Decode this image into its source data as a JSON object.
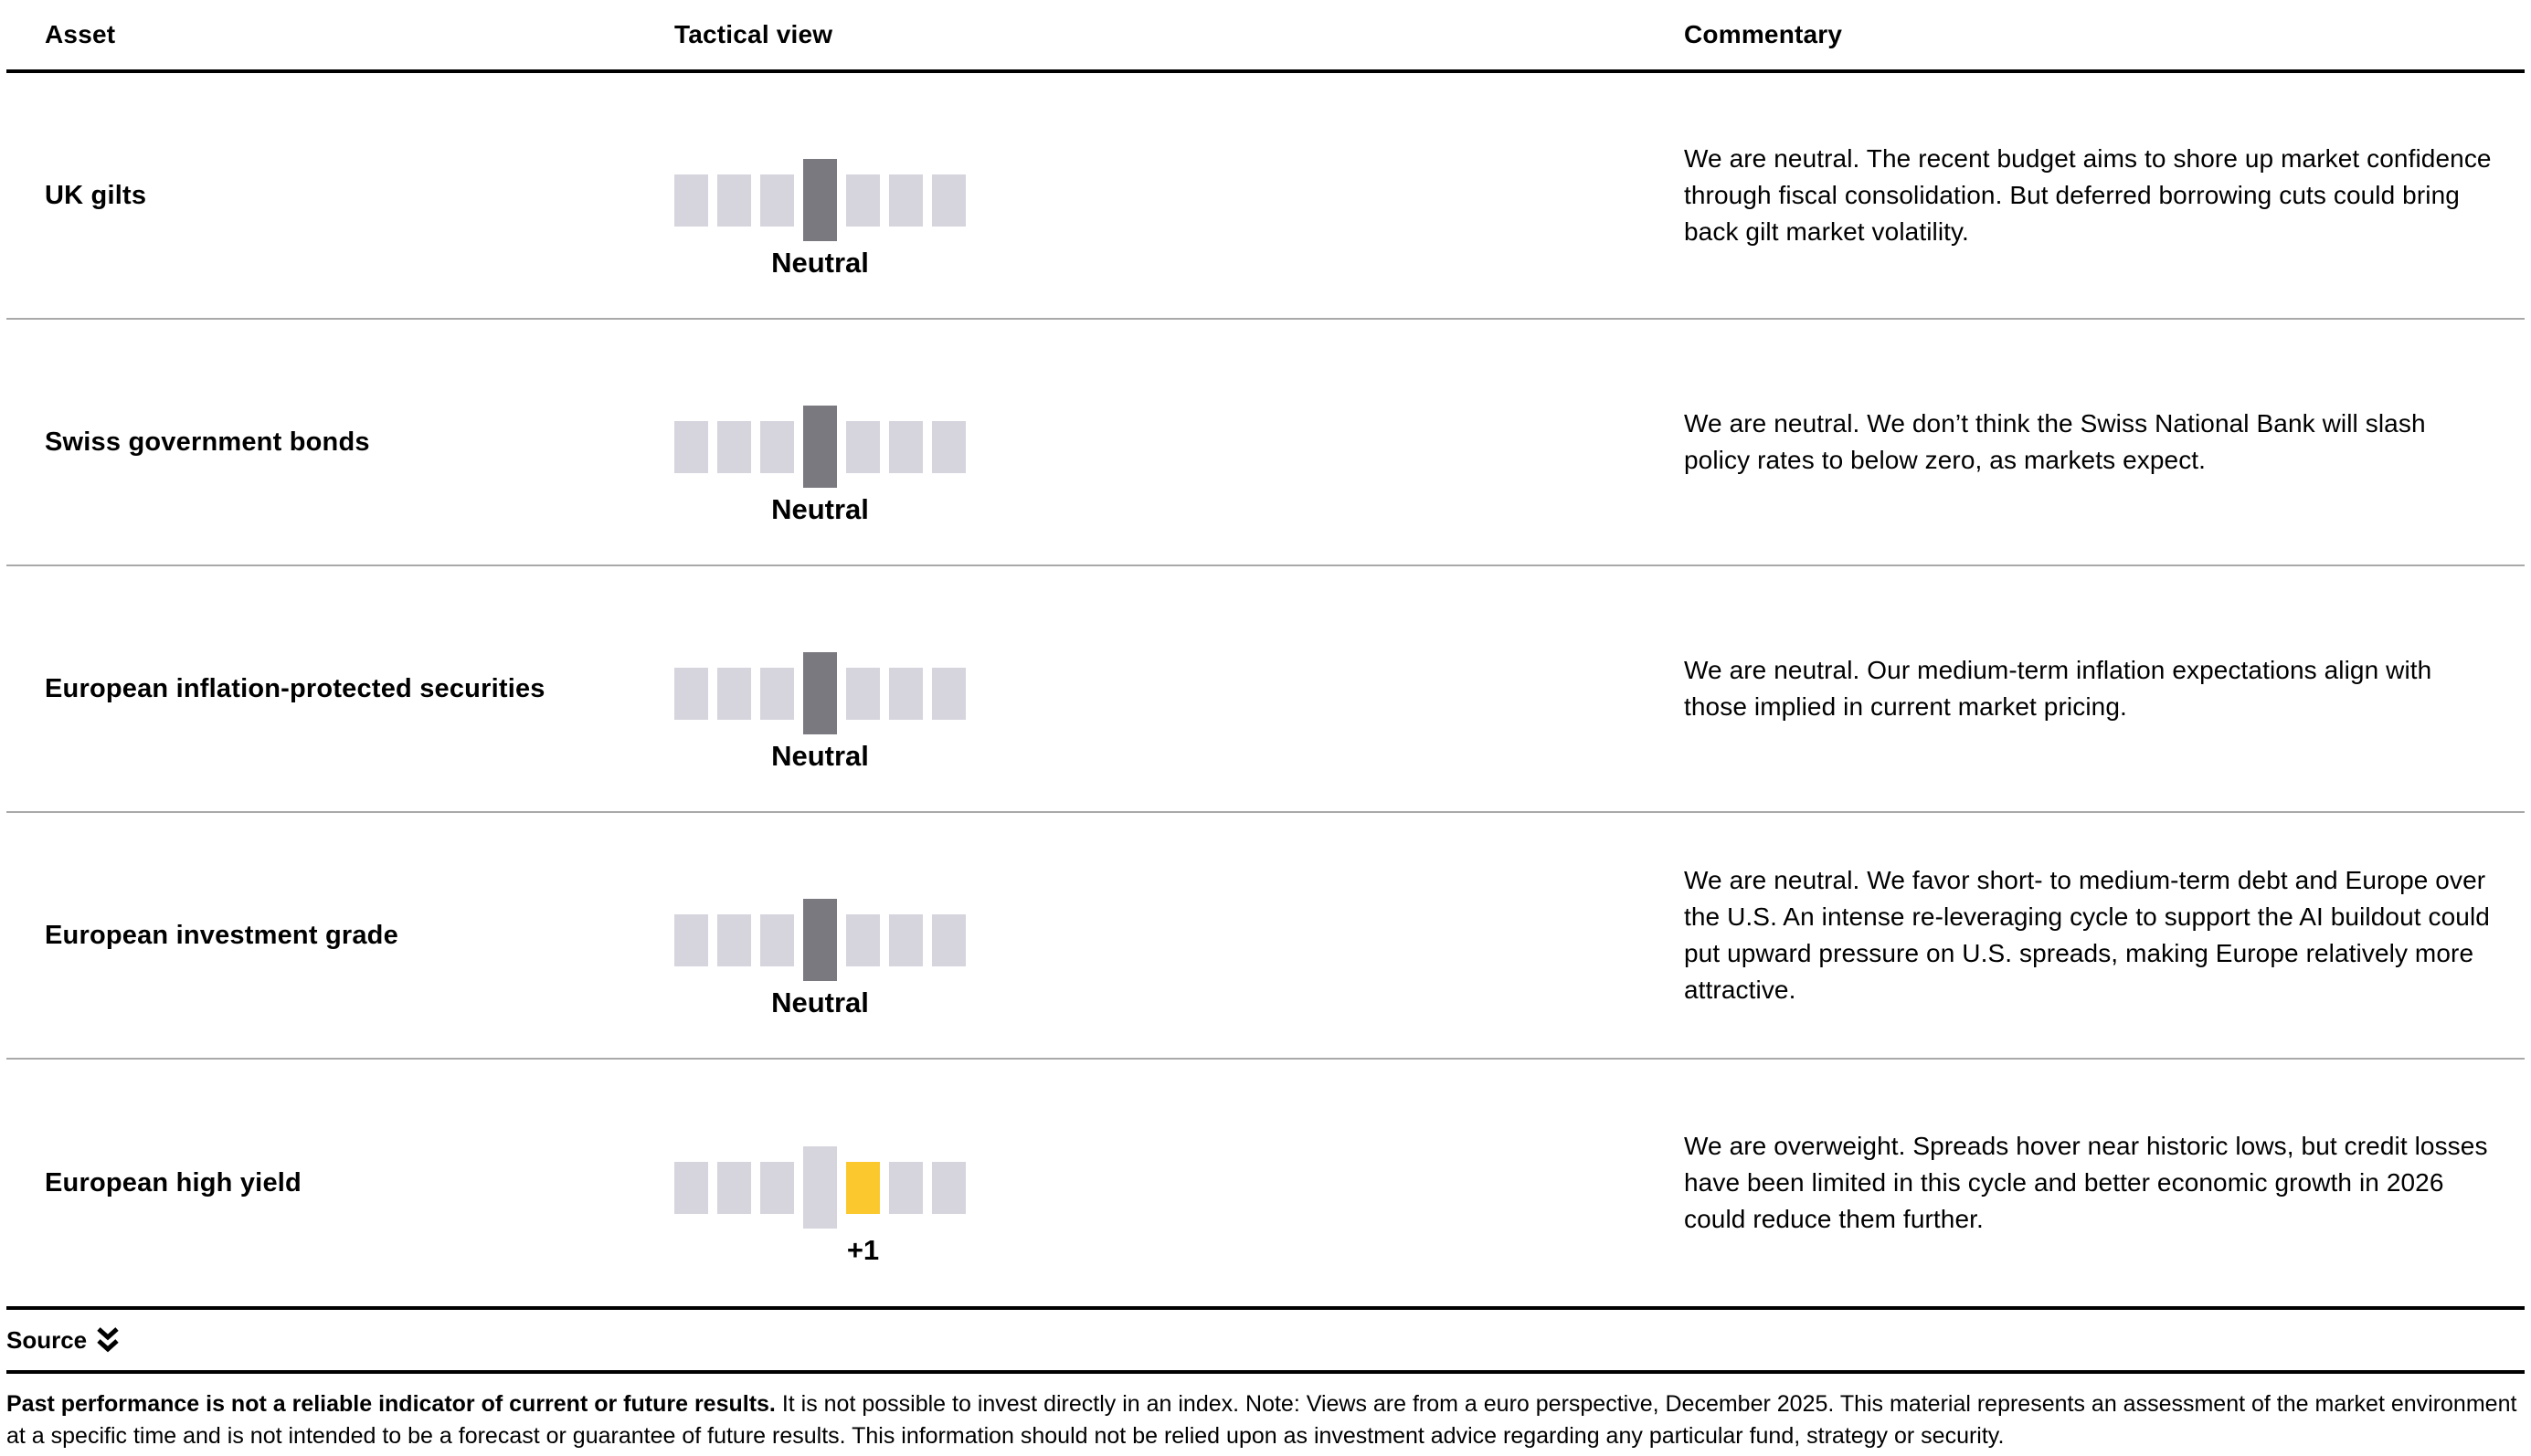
{
  "table": {
    "headers": {
      "asset": "Asset",
      "tactical_view": "Tactical view",
      "commentary": "Commentary"
    },
    "scale_range": [
      "-3",
      "-2",
      "-1",
      "0",
      "+1",
      "+2",
      "+3"
    ],
    "rows": [
      {
        "asset": "UK gilts",
        "view_label": "Neutral",
        "view_value": 0,
        "commentary": "We are neutral. The recent budget aims to shore up market confidence through fiscal consolidation. But deferred borrowing cuts could bring back gilt market volatility."
      },
      {
        "asset": "Swiss government bonds",
        "view_label": "Neutral",
        "view_value": 0,
        "commentary": "We are neutral. We don’t think the Swiss National Bank will slash policy rates to below zero, as markets expect."
      },
      {
        "asset": "European inflation-protected securities",
        "view_label": "Neutral",
        "view_value": 0,
        "commentary": "We are neutral. Our medium-term inflation expectations align with those implied in current market pricing."
      },
      {
        "asset": "European investment grade",
        "view_label": "Neutral",
        "view_value": 0,
        "commentary": "We are neutral. We favor short- to medium-term debt and Europe over the U.S. An intense re-leveraging cycle to support the AI buildout could put upward pressure on U.S. spreads, making Europe relatively more attractive."
      },
      {
        "asset": "European high yield",
        "view_label": "+1",
        "view_value": 1,
        "commentary": "We are overweight. Spreads hover near historic lows, but credit losses have been limited in this cycle and better economic growth in 2026 could reduce them further."
      }
    ]
  },
  "footer": {
    "source_label": "Source",
    "disclaimer_bold": "Past performance is not a reliable indicator of current or future results.",
    "disclaimer_rest": " It is not possible to invest directly in an index. Note: Views are from a euro perspective, December 2025. This material represents an assessment of the market environment at a specific time and is not intended to be a forecast or guarantee of future results. This information should not be relied upon as investment advice regarding any particular fund, strategy or security."
  },
  "colors": {
    "square_inactive": "#D6D5DE",
    "square_neutral_active": "#7B7980",
    "square_overweight_active": "#FBC92E",
    "separator": "#A9A9A9",
    "border": "#000000"
  }
}
